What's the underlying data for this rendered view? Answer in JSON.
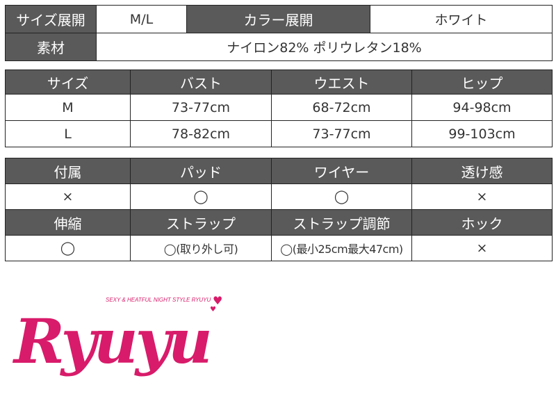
{
  "summary": {
    "size_label": "サイズ展開",
    "size_value": "M/L",
    "color_label": "カラー展開",
    "color_value": "ホワイト",
    "material_label": "素材",
    "material_value": "ナイロン82% ポリウレタン18%"
  },
  "size_table": {
    "headers": [
      "サイズ",
      "バスト",
      "ウエスト",
      "ヒップ"
    ],
    "rows": [
      [
        "M",
        "73-77cm",
        "68-72cm",
        "94-98cm"
      ],
      [
        "L",
        "78-82cm",
        "73-77cm",
        "99-103cm"
      ]
    ]
  },
  "feature_table": {
    "headers1": [
      "付属",
      "パッド",
      "ワイヤー",
      "透け感"
    ],
    "values1": [
      "×",
      "◯",
      "◯",
      "×"
    ],
    "headers2": [
      "伸縮",
      "ストラップ",
      "ストラップ調節",
      "ホック"
    ],
    "values2": [
      "◯",
      "◯(取り外し可)",
      "◯(最小25cm最大47cm)",
      "×"
    ]
  },
  "logo": {
    "name": "Ryuyu",
    "tagline": "SEXY & HEATFUL NIGHT STYLE RYUYU",
    "color": "#d81b6a"
  },
  "colors": {
    "header_bg": "#5a5a5a"
  }
}
